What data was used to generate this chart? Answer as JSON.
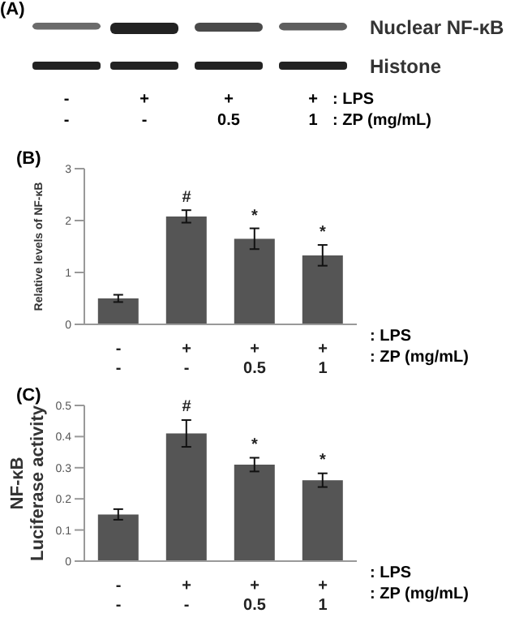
{
  "chart_data": [
    {
      "type": "other",
      "title": "(A)",
      "categories": [
        "-\n-",
        "+\n-",
        "+\n0.5",
        "+\n1"
      ],
      "xlabel": ": LPS\n: ZP (mg/mL)",
      "annotations": [
        "Nuclear NF-κB",
        "Histone"
      ]
    },
    {
      "type": "bar",
      "title": "(B)",
      "categories": [
        "-\n-",
        "+\n-",
        "+\n0.5",
        "+\n1"
      ],
      "values": [
        0.5,
        2.08,
        1.65,
        1.33
      ],
      "errors": [
        0.07,
        0.12,
        0.2,
        0.2
      ],
      "color": "#555555",
      "ylim": [
        0,
        3
      ],
      "yticks": [
        0,
        1,
        2,
        3
      ],
      "ylabel": "Relative levels of NF-κB",
      "xlabel": ": LPS\n: ZP (mg/mL)",
      "annotations": [
        {
          "text": "#",
          "x": "+\n-",
          "y": 2.2
        },
        {
          "text": "*",
          "x": "+\n0.5",
          "y": 1.85
        },
        {
          "text": "*",
          "x": "+\n1",
          "y": 1.53
        }
      ]
    },
    {
      "type": "bar",
      "title": "(C)",
      "categories": [
        "-\n-",
        "+\n-",
        "+\n0.5",
        "+\n1"
      ],
      "values": [
        0.15,
        0.41,
        0.31,
        0.26
      ],
      "errors": [
        0.017,
        0.043,
        0.022,
        0.022
      ],
      "color": "#555555",
      "ylim": [
        0,
        0.5
      ],
      "yticks": [
        0,
        0.1,
        0.2,
        0.3,
        0.4,
        0.5
      ],
      "ylabel": "NF-κB\nLuciferase activity",
      "xlabel": ": LPS\n: ZP (mg/mL)",
      "annotations": [
        {
          "text": "#",
          "x": "+\n-",
          "y": 0.455
        },
        {
          "text": "*",
          "x": "+\n0.5",
          "y": 0.333
        },
        {
          "text": "*",
          "x": "+\n1",
          "y": 0.283
        }
      ]
    }
  ]
}
